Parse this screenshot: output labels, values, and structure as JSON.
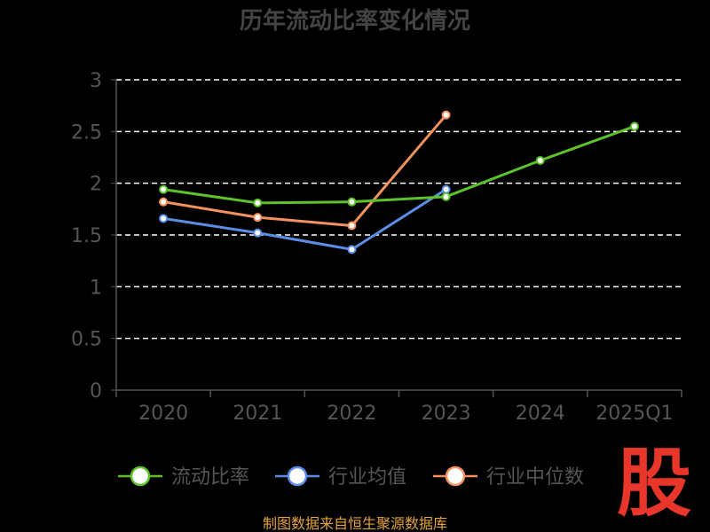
{
  "chart_data": {
    "type": "line",
    "title": "历年流动比率变化情况",
    "categories": [
      "2020",
      "2021",
      "2022",
      "2023",
      "2024",
      "2025Q1"
    ],
    "ylim": [
      0,
      3
    ],
    "yticks": [
      "0",
      "0.5",
      "1",
      "1.5",
      "2",
      "2.5",
      "3"
    ],
    "ytick_values": [
      0,
      0.5,
      1,
      1.5,
      2,
      2.5,
      3
    ],
    "grid": true,
    "legend_position": "bottom",
    "series": [
      {
        "name": "流动比率",
        "color": "#5ec22a",
        "values": [
          1.94,
          1.81,
          1.82,
          1.87,
          2.22,
          2.55
        ]
      },
      {
        "name": "行业均值",
        "color": "#5b8ee6",
        "values": [
          1.66,
          1.52,
          1.36,
          1.94,
          null,
          null
        ]
      },
      {
        "name": "行业中位数",
        "color": "#f5915f",
        "values": [
          1.82,
          1.67,
          1.59,
          2.66,
          null,
          null
        ]
      }
    ]
  },
  "source_text": "制图数据来自恒生聚源数据库",
  "logo": "股"
}
